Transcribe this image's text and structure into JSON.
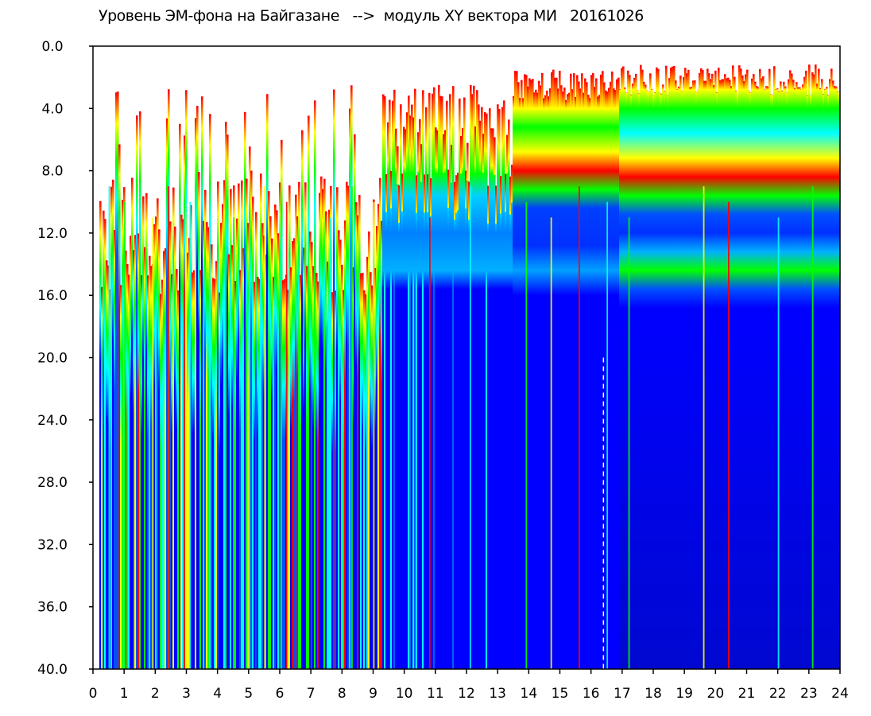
{
  "chart_data": {
    "type": "heatmap",
    "title": "Уровень ЭМ-фона на Байгазане   -->  модуль XY вектора МИ   20161026",
    "xlabel": "",
    "ylabel": "",
    "xlim": [
      0,
      24
    ],
    "ylim": [
      0.0,
      40.0
    ],
    "y_inverted": true,
    "x_ticks": [
      "0",
      "1",
      "2",
      "3",
      "4",
      "5",
      "6",
      "7",
      "8",
      "9",
      "10",
      "11",
      "12",
      "13",
      "14",
      "15",
      "16",
      "17",
      "18",
      "19",
      "20",
      "21",
      "22",
      "23",
      "24"
    ],
    "y_ticks": [
      "0.0",
      "4.0",
      "8.0",
      "12.0",
      "16.0",
      "20.0",
      "24.0",
      "28.0",
      "32.0",
      "36.0",
      "40.0"
    ],
    "colorscale": [
      "#0000ff",
      "#00ffff",
      "#00ff00",
      "#ffff00",
      "#ff0000"
    ],
    "grid": false,
    "legend": "none",
    "regions": [
      {
        "x_range": [
          0.2,
          9.3
        ],
        "high_level_start": 8.0,
        "description_level": "mixed"
      },
      {
        "x_range": [
          9.3,
          13.5
        ],
        "high_level_start": 2.5,
        "band": [
          8.0,
          15.0
        ]
      },
      {
        "x_range": [
          13.5,
          16.8
        ],
        "high_level_start": 2.0,
        "band": [
          3.0,
          9.0
        ]
      },
      {
        "x_range": [
          17.0,
          24.0
        ],
        "high_level_start": 1.5,
        "band": [
          2.0,
          15.0
        ]
      }
    ]
  }
}
